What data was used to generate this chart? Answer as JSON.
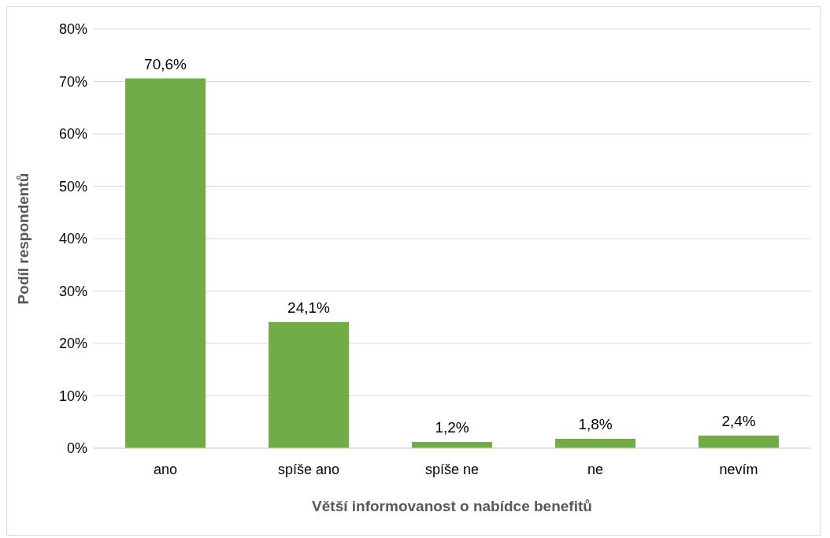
{
  "chart_data": {
    "type": "bar",
    "xlabel": "Větší informovanost o nabídce benefitů",
    "ylabel": "Podíl respondentů",
    "categories": [
      "ano",
      "spíše ano",
      "spíše ne",
      "ne",
      "nevím"
    ],
    "values": [
      70.6,
      24.1,
      1.2,
      1.8,
      2.4
    ],
    "value_labels": [
      "70,6%",
      "24,1%",
      "1,2%",
      "1,8%",
      "2,4%"
    ],
    "color": "#70ad47",
    "ylim": [
      0,
      80
    ],
    "yticks": [
      {
        "value": 0,
        "label": "0%"
      },
      {
        "value": 10,
        "label": "10%"
      },
      {
        "value": 20,
        "label": "20%"
      },
      {
        "value": 30,
        "label": "30%"
      },
      {
        "value": 40,
        "label": "40%"
      },
      {
        "value": 50,
        "label": "50%"
      },
      {
        "value": 60,
        "label": "60%"
      },
      {
        "value": 70,
        "label": "70%"
      },
      {
        "value": 80,
        "label": "80%"
      }
    ],
    "grid": "y",
    "legend": false
  }
}
